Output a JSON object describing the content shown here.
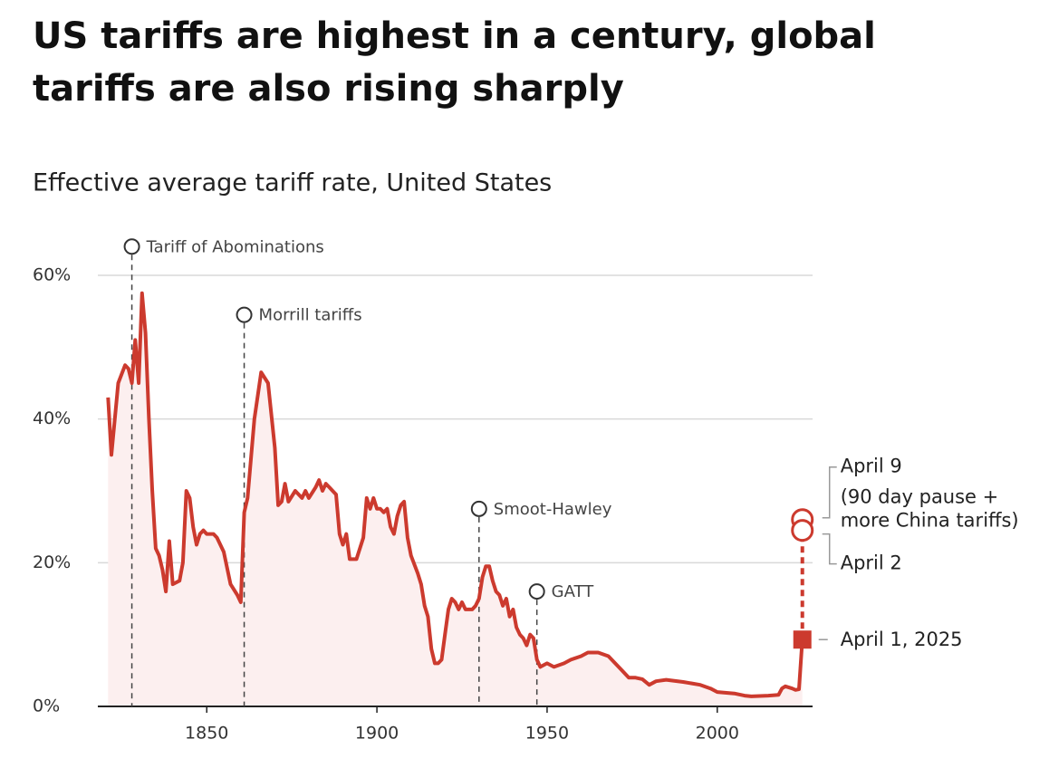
{
  "chart_data": {
    "type": "line",
    "title_lines": [
      "US tariffs are highest in a century, global",
      "tariffs are also rising sharply"
    ],
    "subtitle": "Effective average tariff rate, United States",
    "color": "#cc3a2e",
    "area_color": "#fcefef",
    "grid": true,
    "xlim": [
      1818,
      2028
    ],
    "ylim": [
      0,
      60
    ],
    "xticks": [
      1850,
      1900,
      1950,
      2000
    ],
    "yticks": [
      {
        "value": 0,
        "label": "0%"
      },
      {
        "value": 20,
        "label": "20%"
      },
      {
        "value": 40,
        "label": "40%"
      },
      {
        "value": 60,
        "label": "60%"
      }
    ],
    "x": [
      1821,
      1822,
      1824,
      1826,
      1827,
      1828,
      1829,
      1830,
      1831,
      1832,
      1833,
      1834,
      1835,
      1836,
      1837,
      1838,
      1839,
      1840,
      1842,
      1843,
      1844,
      1845,
      1846,
      1847,
      1848,
      1849,
      1850,
      1852,
      1853,
      1855,
      1857,
      1859,
      1860,
      1861,
      1862,
      1864,
      1866,
      1868,
      1870,
      1871,
      1872,
      1873,
      1874,
      1876,
      1878,
      1879,
      1880,
      1882,
      1883,
      1884,
      1885,
      1886,
      1887,
      1888,
      1889,
      1890,
      1891,
      1892,
      1894,
      1896,
      1897,
      1898,
      1899,
      1900,
      1901,
      1902,
      1903,
      1904,
      1905,
      1906,
      1907,
      1908,
      1909,
      1910,
      1912,
      1913,
      1914,
      1915,
      1916,
      1917,
      1918,
      1919,
      1920,
      1921,
      1922,
      1923,
      1924,
      1925,
      1926,
      1928,
      1929,
      1930,
      1931,
      1932,
      1933,
      1934,
      1935,
      1936,
      1937,
      1938,
      1939,
      1940,
      1941,
      1942,
      1943,
      1944,
      1945,
      1946,
      1947,
      1948,
      1950,
      1952,
      1955,
      1957,
      1960,
      1962,
      1965,
      1968,
      1970,
      1972,
      1974,
      1976,
      1978,
      1980,
      1982,
      1985,
      1990,
      1995,
      1998,
      2000,
      2005,
      2008,
      2010,
      2015,
      2018,
      2019,
      2020,
      2022,
      2023,
      2024,
      2025
    ],
    "values": [
      43,
      35,
      45,
      47.5,
      47,
      45,
      51,
      45,
      57.5,
      52,
      40,
      30,
      22,
      21,
      19,
      16,
      23,
      17,
      17.5,
      20,
      30,
      29,
      25,
      22.5,
      24,
      24.5,
      24,
      24,
      23.5,
      21.5,
      17,
      15.5,
      14.5,
      27,
      29,
      40,
      46.5,
      45,
      36,
      28,
      28.5,
      31,
      28.5,
      30,
      29,
      30,
      29,
      30.5,
      31.5,
      30,
      31,
      30.5,
      30,
      29.5,
      24,
      22.5,
      24,
      20.5,
      20.5,
      23.5,
      29,
      27.5,
      29,
      27.5,
      27.5,
      27,
      27.5,
      25,
      24,
      26.5,
      28,
      28.5,
      23.5,
      21,
      18.5,
      17,
      14,
      12.5,
      8,
      6,
      6,
      6.5,
      10,
      13.5,
      15,
      14.5,
      13.5,
      14.5,
      13.5,
      13.5,
      14,
      15,
      18,
      19.5,
      19.5,
      17.5,
      16,
      15.5,
      14,
      15,
      12.5,
      13.5,
      11,
      10,
      9.5,
      8.5,
      10,
      9.5,
      6.5,
      5.5,
      6,
      5.5,
      6,
      6.5,
      7,
      7.5,
      7.5,
      7,
      6,
      5,
      4,
      4,
      3.8,
      3,
      3.5,
      3.7,
      3.4,
      3,
      2.5,
      2,
      1.8,
      1.5,
      1.4,
      1.5,
      1.6,
      2.5,
      2.8,
      2.5,
      2.3,
      2.4,
      9.3
    ],
    "end_label": "April 1, 2025",
    "events": [
      {
        "label": "Tariff of Abominations",
        "x": 1828,
        "y": 64
      },
      {
        "label": "Morrill tariffs",
        "x": 1861,
        "y": 54.5
      },
      {
        "label": "Smoot-Hawley",
        "x": 1930,
        "y": 27.5
      },
      {
        "label": "GATT",
        "x": 1947,
        "y": 16
      }
    ],
    "projections": [
      {
        "label": "April 9",
        "note": [
          "(90 day pause +",
          "more China tariffs)"
        ],
        "value": 26
      },
      {
        "label": "April 2",
        "value": 24.5
      }
    ]
  }
}
